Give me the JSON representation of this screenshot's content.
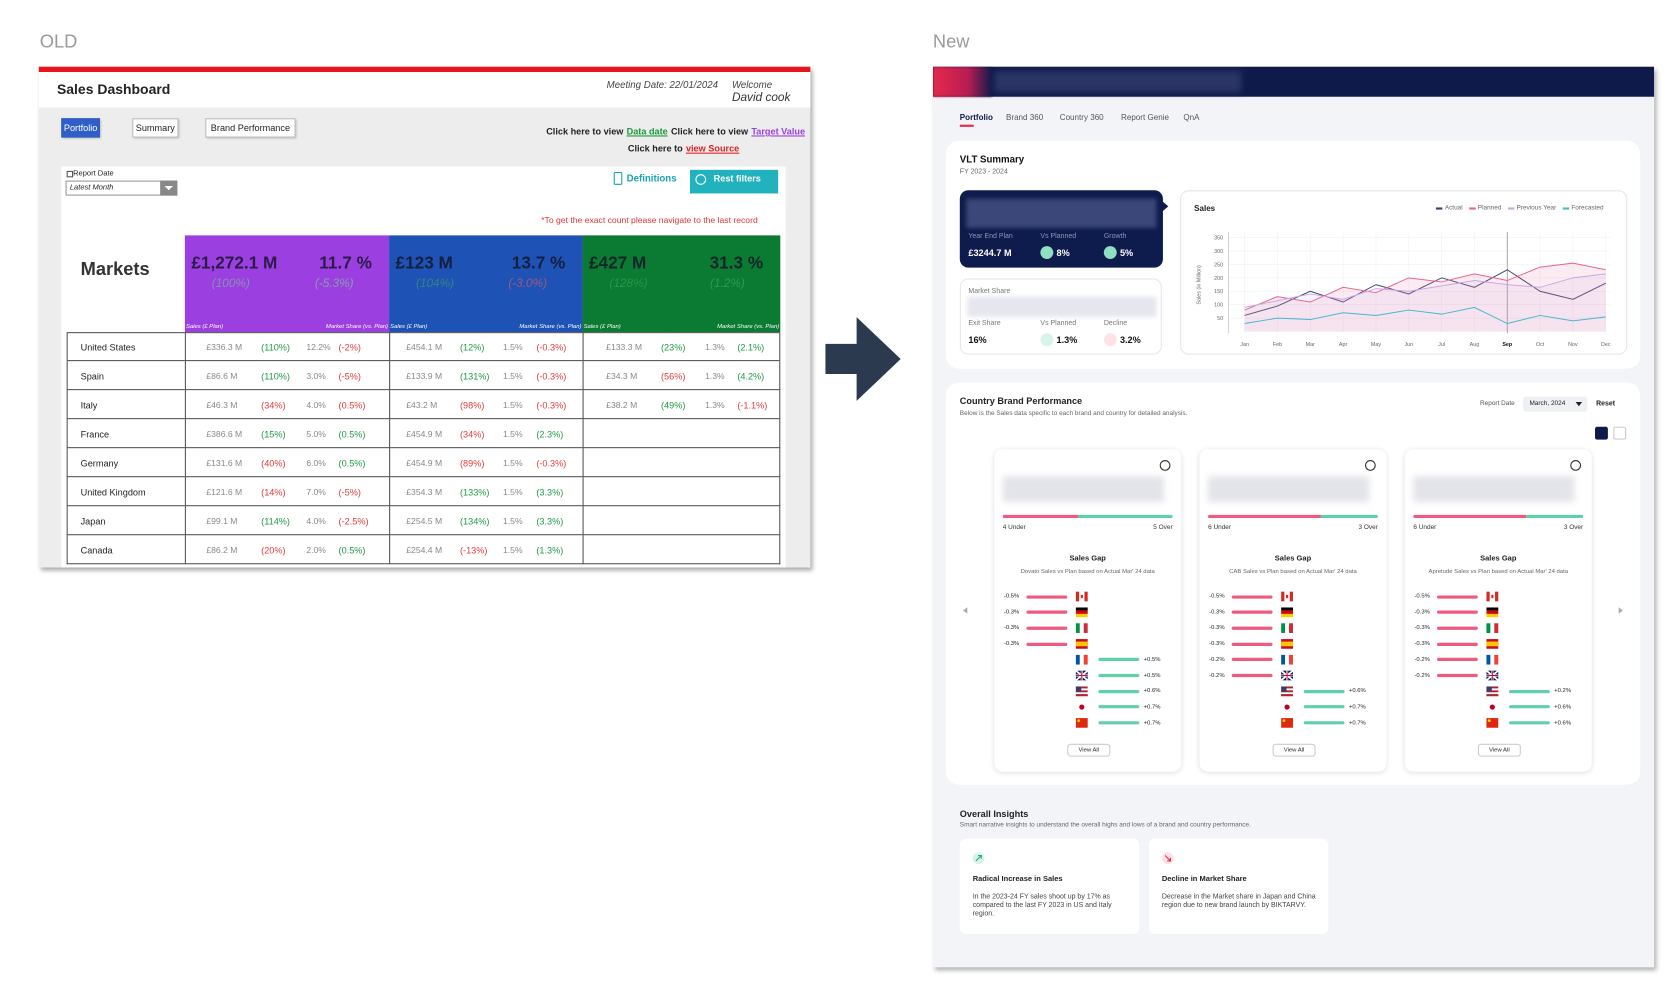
{
  "old": {
    "label": "OLD",
    "title": "Sales Dashboard",
    "meeting_date": "Meeting Date: 22/01/2024",
    "welcome": "Welcome",
    "user": "David cook",
    "tabs": [
      "Portfolio",
      "Summary",
      "Brand Performance"
    ],
    "links": [
      [
        {
          "text": "Click here to view",
          "color": "#222222"
        },
        {
          "text": "Data date",
          "color": "#1a9a3a"
        },
        {
          "text": "Click here to view",
          "color": "#222222"
        },
        {
          "text": "Target Value",
          "color": "#9b3fe0"
        }
      ],
      [
        {
          "text": "Click here to",
          "color": "#222222"
        },
        {
          "text": "view Source",
          "color": "#e02020"
        }
      ]
    ],
    "report_date_label": "Report Date",
    "report_date_value": "Latest Month",
    "definitions": "Definitions",
    "reset_filters": "Rest filters",
    "note": "*To get the exact count please navigate to the last record",
    "table": {
      "heading": "Markets",
      "sales_header": "Sales (£ Plan)",
      "share_header": "Market Share (vs. Plan)",
      "blocks": [
        {
          "color": "#9b3fe0",
          "sales": "£1,272.1 M",
          "sales_sub": "(100%)",
          "sales_sub_color": "#7fd08f",
          "share": "11.7 %",
          "share_sub": "(-5.3%)",
          "share_sub_color": "#7fd08f"
        },
        {
          "color": "#1f52b5",
          "sales": "£123 M",
          "sales_sub": "(104%)",
          "sales_sub_color": "#3fae5f",
          "share": "13.7 %",
          "share_sub": "(-3.0%)",
          "share_sub_color": "#e0605a"
        },
        {
          "color": "#0b7a32",
          "sales": "£427 M",
          "sales_sub": "(128%)",
          "sales_sub_color": "#3fae5f",
          "share": "31.3 %",
          "share_sub": "(1.2%)",
          "share_sub_color": "#3fae5f"
        }
      ],
      "rows": [
        {
          "country": "United States",
          "groups": [
            [
              "£336.3 M",
              "(110%)",
              "12.2%",
              "(-2%)"
            ],
            [
              "£454.1 M",
              "(12%)",
              "1.5%",
              "(-0.3%)"
            ],
            [
              "£133.3 M",
              "(23%)",
              "1.3%",
              "(2.1%)"
            ]
          ],
          "colors": [
            [
              "green",
              "red"
            ],
            [
              "green",
              "red"
            ],
            [
              "green",
              "green"
            ]
          ]
        },
        {
          "country": "Spain",
          "groups": [
            [
              "£86.6 M",
              "(110%)",
              "3.0%",
              "(-5%)"
            ],
            [
              "£133.9 M",
              "(131%)",
              "1.5%",
              "(-0.3%)"
            ],
            [
              "£34.3 M",
              "(56%)",
              "1.3%",
              "(4.2%)"
            ]
          ],
          "colors": [
            [
              "green",
              "red"
            ],
            [
              "green",
              "red"
            ],
            [
              "red",
              "green"
            ]
          ]
        },
        {
          "country": "Italy",
          "groups": [
            [
              "£46.3 M",
              "(34%)",
              "4.0%",
              "(0.5%)"
            ],
            [
              "£43.2 M",
              "(98%)",
              "1.5%",
              "(-0.3%)"
            ],
            [
              "£38.2 M",
              "(49%)",
              "1.3%",
              "(-1.1%)"
            ]
          ],
          "colors": [
            [
              "red",
              "red"
            ],
            [
              "red",
              "red"
            ],
            [
              "green",
              "red"
            ]
          ]
        },
        {
          "country": "France",
          "groups": [
            [
              "£386.6 M",
              "(15%)",
              "5.0%",
              "(0.5%)"
            ],
            [
              "£454.9 M",
              "(34%)",
              "1.5%",
              "(2.3%)"
            ]
          ],
          "colors": [
            [
              "green",
              "green"
            ],
            [
              "red",
              "green"
            ]
          ]
        },
        {
          "country": "Germany",
          "groups": [
            [
              "£131.6 M",
              "(40%)",
              "6.0%",
              "(0.5%)"
            ],
            [
              "£454.9 M",
              "(89%)",
              "1.5%",
              "(-0.3%)"
            ]
          ],
          "colors": [
            [
              "red",
              "green"
            ],
            [
              "red",
              "red"
            ]
          ]
        },
        {
          "country": "United Kingdom",
          "groups": [
            [
              "£121.6 M",
              "(14%)",
              "7.0%",
              "(-5%)"
            ],
            [
              "£354.3 M",
              "(133%)",
              "1.5%",
              "(3.3%)"
            ]
          ],
          "colors": [
            [
              "red",
              "red"
            ],
            [
              "green",
              "green"
            ]
          ]
        },
        {
          "country": "Japan",
          "groups": [
            [
              "£99.1 M",
              "(114%)",
              "4.0%",
              "(-2.5%)"
            ],
            [
              "£254.5 M",
              "(134%)",
              "1.5%",
              "(3.3%)"
            ]
          ],
          "colors": [
            [
              "green",
              "red"
            ],
            [
              "green",
              "green"
            ]
          ]
        },
        {
          "country": "Canada",
          "groups": [
            [
              "£86.2 M",
              "(20%)",
              "2.0%",
              "(0.5%)"
            ],
            [
              "£254.4 M",
              "(-13%)",
              "1.5%",
              "(1.3%)"
            ]
          ],
          "colors": [
            [
              "red",
              "green"
            ],
            [
              "red",
              "green"
            ]
          ]
        }
      ]
    }
  },
  "new": {
    "label": "New",
    "nav": [
      "Portfolio",
      "Brand 360",
      "Country 360",
      "Report Genie",
      "QnA"
    ],
    "vlt": {
      "title": "VLT Summary",
      "period": "FY 2023 - 2024",
      "sales_card": {
        "labels": [
          "Year End Plan",
          "Vs Planned",
          "Growth"
        ],
        "values": [
          "£3244.7 M",
          "8%",
          "5%"
        ]
      },
      "share_card": {
        "title": "Market Share",
        "labels": [
          "Exit Share",
          "Vs Planned",
          "Decline"
        ],
        "values": [
          "16%",
          "1.3%",
          "3.2%"
        ]
      },
      "chart": {
        "type": "line",
        "title": "Sales",
        "y_label": "Sales (in Million)",
        "categories": [
          "Jan",
          "Feb",
          "Mar",
          "Apr",
          "May",
          "Jun",
          "Jul",
          "Aug",
          "Sep",
          "Oct",
          "Nov",
          "Dec"
        ],
        "ylim": [
          0,
          350
        ],
        "yticks": [
          50,
          100,
          150,
          200,
          250,
          300,
          350
        ],
        "highlight_index": 8,
        "series": [
          {
            "name": "Actual",
            "color": "#3d4170",
            "values": [
              60,
              95,
              150,
              110,
              175,
              140,
              200,
              165,
              230,
              150,
              120,
              180
            ]
          },
          {
            "name": "Planned",
            "color": "#e8628f",
            "values": [
              80,
              130,
              110,
              165,
              145,
              200,
              185,
              215,
              190,
              240,
              255,
              230
            ]
          },
          {
            "name": "Previous Year",
            "color": "#c9a6e6",
            "values": [
              90,
              115,
              140,
              120,
              160,
              150,
              170,
              190,
              175,
              165,
              200,
              215
            ]
          },
          {
            "name": "Forecasted",
            "color": "#49b6c9",
            "values": [
              30,
              50,
              45,
              70,
              60,
              80,
              65,
              90,
              30,
              60,
              40,
              55
            ]
          }
        ]
      }
    },
    "brand_performance": {
      "title": "Country Brand Performance",
      "description": "Below is the Sales data specific to each brand and country for detailed analysis.",
      "report_date_label": "Report Date",
      "report_date_value": "March, 2024",
      "reset": "Reset",
      "cards": [
        {
          "under": {
            "value": 4,
            "label": "4 Under"
          },
          "over": {
            "value": 5,
            "label": "5 Over"
          },
          "gap_title": "Sales Gap",
          "gap_description": "Dovato Sales vs Plan based on Actual Mar' 24 data",
          "gaps": [
            -0.5,
            -0.3,
            -0.3,
            -0.3,
            0.5,
            0.5,
            0.6,
            0.7,
            0.7
          ],
          "gap_labels": [
            "-0.5%",
            "-0.3%",
            "-0.3%",
            "-0.3%",
            "+0.5%",
            "+0.5%",
            "+0.6%",
            "+0.7%",
            "+0.7%"
          ],
          "view_all": "View All"
        },
        {
          "under": {
            "value": 6,
            "label": "6 Under"
          },
          "over": {
            "value": 3,
            "label": "3 Over"
          },
          "gap_title": "Sales Gap",
          "gap_description": "CAB Sales vs Plan based on Actual Mar' 24 data",
          "gaps": [
            -0.5,
            -0.3,
            -0.3,
            -0.3,
            -0.2,
            -0.2,
            0.6,
            0.7,
            0.7
          ],
          "gap_labels": [
            "-0.5%",
            "-0.3%",
            "-0.3%",
            "-0.3%",
            "-0.2%",
            "-0.2%",
            "+0.6%",
            "+0.7%",
            "+0.7%"
          ],
          "view_all": "View All"
        },
        {
          "under": {
            "value": 6,
            "label": "6 Under"
          },
          "over": {
            "value": 3,
            "label": "3 Over"
          },
          "gap_title": "Sales Gap",
          "gap_description": "Apretude Sales vs Plan based on Actual Mar' 24 data",
          "gaps": [
            -0.5,
            -0.3,
            -0.3,
            -0.3,
            -0.2,
            -0.2,
            0.2,
            0.6,
            0.6
          ],
          "gap_labels": [
            "-0.5%",
            "-0.3%",
            "-0.3%",
            "-0.3%",
            "-0.2%",
            "-0.2%",
            "+0.2%",
            "+0.6%",
            "+0.6%"
          ],
          "view_all": "View All"
        }
      ]
    },
    "insights": {
      "title": "Overall Insights",
      "description": "Smart narrative insights to understand the overall highs and lows of a brand and country performance.",
      "cards": [
        {
          "trend": "up",
          "title": "Radical Increase in Sales",
          "body": "In the 2023-24 FY sales shoot up by 17% as compared to the last FY 2023 in US and Italy region."
        },
        {
          "trend": "down",
          "title": "Decline in Market Share",
          "body": "Decrease in the Market share in Japan and China region due to new brand launch by BIKTARVY."
        }
      ]
    }
  }
}
